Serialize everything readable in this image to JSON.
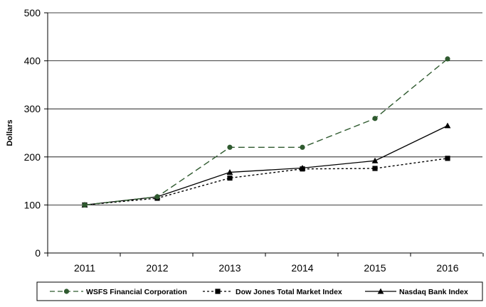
{
  "chart_data": {
    "type": "line",
    "title": "",
    "xlabel": "",
    "ylabel": "Dollars",
    "categories": [
      "2011",
      "2012",
      "2013",
      "2014",
      "2015",
      "2016"
    ],
    "ylim": [
      0,
      500
    ],
    "yticks": [
      0,
      100,
      200,
      300,
      400,
      500
    ],
    "grid": true,
    "legend_position": "bottom",
    "series": [
      {
        "name": "WSFS Financial Corporation",
        "values": [
          100,
          117,
          220,
          220,
          280,
          404
        ],
        "color": "#2f5a2f",
        "line_style": "long-dash",
        "marker": "circle"
      },
      {
        "name": "Dow Jones Total Market Index",
        "values": [
          100,
          114,
          156,
          175,
          176,
          197
        ],
        "color": "#000000",
        "line_style": "short-dash",
        "marker": "square"
      },
      {
        "name": "Nasdaq Bank Index",
        "values": [
          100,
          117,
          168,
          177,
          192,
          265
        ],
        "color": "#000000",
        "line_style": "solid",
        "marker": "triangle"
      }
    ]
  }
}
